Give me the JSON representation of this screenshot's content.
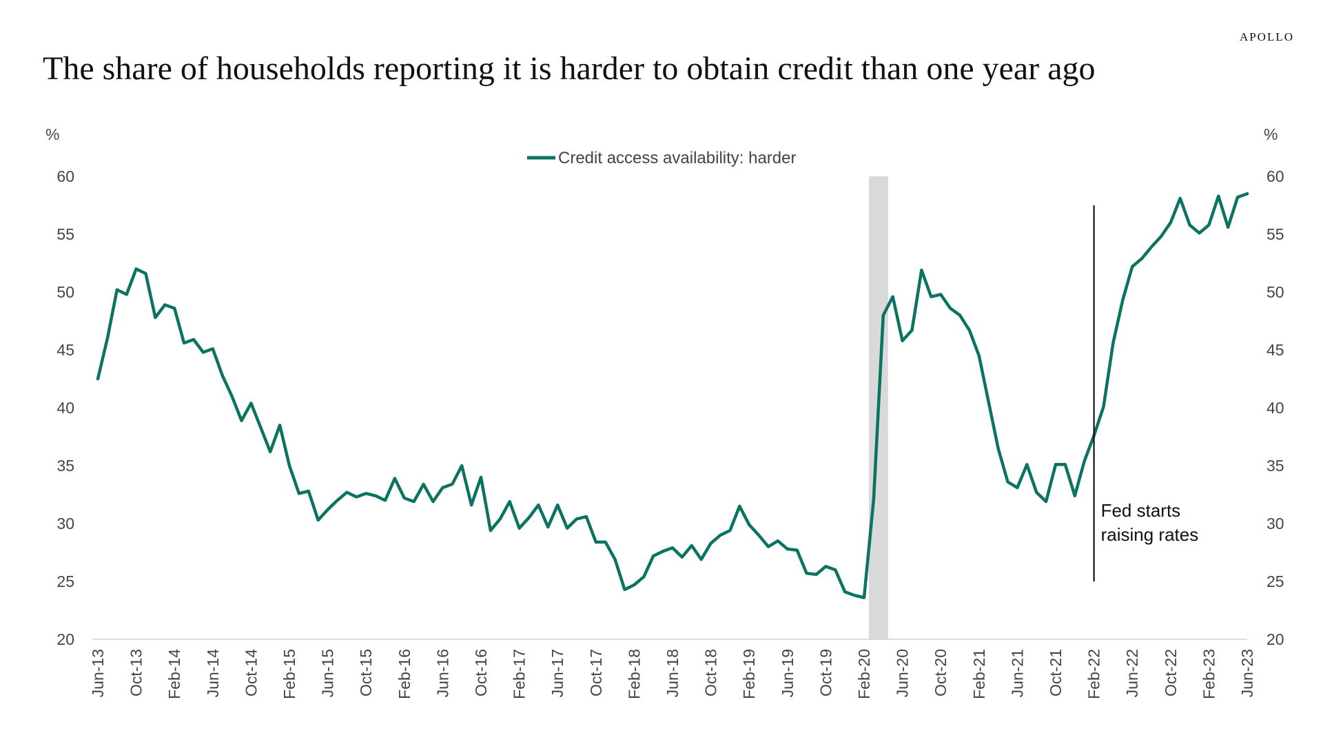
{
  "brand": "APOLLO",
  "title": "The share of households reporting it is harder to obtain credit than one year ago",
  "colors": {
    "series": "#0b7361",
    "shade": "#d9d9d9",
    "axis": "#d0d0d0",
    "annotation_line": "#000000"
  },
  "chart_data": {
    "type": "line",
    "title": "The share of households reporting it is harder to obtain credit than one year ago",
    "ylabel_left": "%",
    "ylabel_right": "%",
    "ylim": [
      20,
      60
    ],
    "yticks": [
      20,
      25,
      30,
      35,
      40,
      45,
      50,
      55,
      60
    ],
    "grid": false,
    "legend_position": "top-center",
    "x_start": "Jun-13",
    "x_end": "Jun-23",
    "xtick_labels": [
      "Jun-13",
      "Oct-13",
      "Feb-14",
      "Jun-14",
      "Oct-14",
      "Feb-15",
      "Jun-15",
      "Oct-15",
      "Feb-16",
      "Jun-16",
      "Oct-16",
      "Feb-17",
      "Jun-17",
      "Oct-17",
      "Feb-18",
      "Jun-18",
      "Oct-18",
      "Feb-19",
      "Jun-19",
      "Oct-19",
      "Feb-20",
      "Jun-20",
      "Oct-20",
      "Feb-21",
      "Jun-21",
      "Oct-21",
      "Feb-22",
      "Jun-22",
      "Oct-22",
      "Feb-23",
      "Jun-23"
    ],
    "shaded_period": {
      "start": "Mar-20",
      "end": "Apr-20"
    },
    "annotation": {
      "text_lines": [
        "Fed starts",
        "raising rates"
      ],
      "at": "Feb-22",
      "y_from": 25,
      "y_to": 57.5
    },
    "series": [
      {
        "name": "Credit access availability: harder",
        "values": [
          42.5,
          46.0,
          50.2,
          49.8,
          52.0,
          51.6,
          47.8,
          48.9,
          48.6,
          45.6,
          45.9,
          44.8,
          45.1,
          42.8,
          41.0,
          38.9,
          40.4,
          38.3,
          36.2,
          38.5,
          35.0,
          32.6,
          32.8,
          30.3,
          31.2,
          32.0,
          32.7,
          32.3,
          32.6,
          32.4,
          32.0,
          33.9,
          32.2,
          31.9,
          33.4,
          31.9,
          33.1,
          33.4,
          35.0,
          31.6,
          34.0,
          29.4,
          30.4,
          31.9,
          29.6,
          30.5,
          31.6,
          29.7,
          31.6,
          29.6,
          30.4,
          30.6,
          28.4,
          28.4,
          26.9,
          24.3,
          24.7,
          25.4,
          27.2,
          27.6,
          27.9,
          27.1,
          28.1,
          26.9,
          28.3,
          29.0,
          29.4,
          31.5,
          29.9,
          29.0,
          28.0,
          28.5,
          27.8,
          27.7,
          25.7,
          25.6,
          26.3,
          26.0,
          24.1,
          23.8,
          23.6,
          32.1,
          48.0,
          49.6,
          45.8,
          46.7,
          51.9,
          49.6,
          49.8,
          48.6,
          48.0,
          46.7,
          44.5,
          40.5,
          36.5,
          33.6,
          33.1,
          35.1,
          32.7,
          31.9,
          35.1,
          35.1,
          32.4,
          35.4,
          37.6,
          40.1,
          45.6,
          49.3,
          52.2,
          52.9,
          53.9,
          54.8,
          56.0,
          58.1,
          55.8,
          55.1,
          55.8,
          58.3,
          55.6,
          58.2,
          58.5
        ]
      }
    ]
  }
}
